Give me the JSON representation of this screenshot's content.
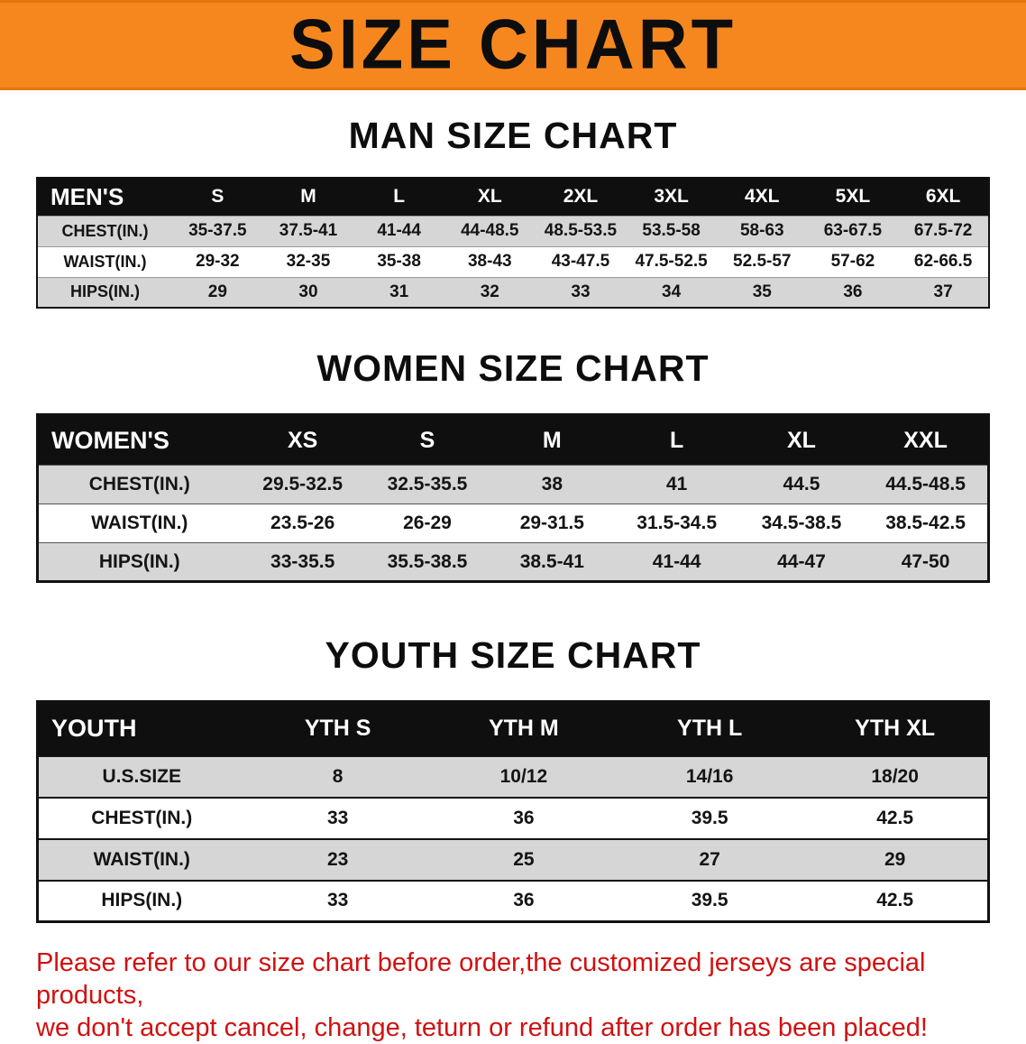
{
  "banner": {
    "title": "SIZE CHART"
  },
  "men": {
    "heading": "MAN SIZE CHART",
    "header": [
      "MEN'S",
      "S",
      "M",
      "L",
      "XL",
      "2XL",
      "3XL",
      "4XL",
      "5XL",
      "6XL"
    ],
    "rows": [
      [
        "CHEST(IN.)",
        "35-37.5",
        "37.5-41",
        "41-44",
        "44-48.5",
        "48.5-53.5",
        "53.5-58",
        "58-63",
        "63-67.5",
        "67.5-72"
      ],
      [
        "WAIST(IN.)",
        "29-32",
        "32-35",
        "35-38",
        "38-43",
        "43-47.5",
        "47.5-52.5",
        "52.5-57",
        "57-62",
        "62-66.5"
      ],
      [
        "HIPS(IN.)",
        "29",
        "30",
        "31",
        "32",
        "33",
        "34",
        "35",
        "36",
        "37"
      ]
    ]
  },
  "women": {
    "heading": "WOMEN SIZE CHART",
    "header": [
      "WOMEN'S",
      "XS",
      "S",
      "M",
      "L",
      "XL",
      "XXL"
    ],
    "rows": [
      [
        "CHEST(IN.)",
        "29.5-32.5",
        "32.5-35.5",
        "38",
        "41",
        "44.5",
        "44.5-48.5"
      ],
      [
        "WAIST(IN.)",
        "23.5-26",
        "26-29",
        "29-31.5",
        "31.5-34.5",
        "34.5-38.5",
        "38.5-42.5"
      ],
      [
        "HIPS(IN.)",
        "33-35.5",
        "35.5-38.5",
        "38.5-41",
        "41-44",
        "44-47",
        "47-50"
      ]
    ]
  },
  "youth": {
    "heading": "YOUTH SIZE CHART",
    "header": [
      "YOUTH",
      "YTH S",
      "YTH M",
      "YTH L",
      "YTH XL"
    ],
    "rows": [
      [
        "U.S.SIZE",
        "8",
        "10/12",
        "14/16",
        "18/20"
      ],
      [
        "CHEST(IN.)",
        "33",
        "36",
        "39.5",
        "42.5"
      ],
      [
        "WAIST(IN.)",
        "23",
        "25",
        "27",
        "29"
      ],
      [
        "HIPS(IN.)",
        "33",
        "36",
        "39.5",
        "42.5"
      ]
    ]
  },
  "disclaimer": {
    "line1": "Please refer to our size chart before order,the customized jerseys are special products,",
    "line2": "we don't accept cancel, change, teturn or refund after order has been placed!"
  },
  "colors": {
    "banner_bg": "#f6871f",
    "header_bg": "#0f0f0f",
    "row_gray": "#d6d6d6",
    "disclaimer_red": "#d01111"
  }
}
